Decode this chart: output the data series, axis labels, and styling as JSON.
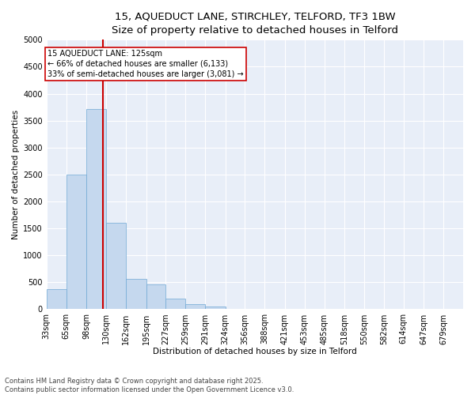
{
  "title_line1": "15, AQUEDUCT LANE, STIRCHLEY, TELFORD, TF3 1BW",
  "title_line2": "Size of property relative to detached houses in Telford",
  "xlabel": "Distribution of detached houses by size in Telford",
  "ylabel": "Number of detached properties",
  "bar_color": "#c5d8ee",
  "bar_edge_color": "#6fa8d4",
  "bg_color": "#e8eef8",
  "grid_color": "#ffffff",
  "vline_x": 125,
  "vline_color": "#cc0000",
  "annotation_text": "15 AQUEDUCT LANE: 125sqm\n← 66% of detached houses are smaller (6,133)\n33% of semi-detached houses are larger (3,081) →",
  "annotation_box_color": "#cc0000",
  "footer_text": "Contains HM Land Registry data © Crown copyright and database right 2025.\nContains public sector information licensed under the Open Government Licence v3.0.",
  "categories": [
    "33sqm",
    "65sqm",
    "98sqm",
    "130sqm",
    "162sqm",
    "195sqm",
    "227sqm",
    "259sqm",
    "291sqm",
    "324sqm",
    "356sqm",
    "388sqm",
    "421sqm",
    "453sqm",
    "485sqm",
    "518sqm",
    "550sqm",
    "582sqm",
    "614sqm",
    "647sqm",
    "679sqm"
  ],
  "bin_edges": [
    33,
    65,
    98,
    130,
    162,
    195,
    227,
    259,
    291,
    324,
    356,
    388,
    421,
    453,
    485,
    518,
    550,
    582,
    614,
    647,
    679,
    711
  ],
  "values": [
    370,
    2500,
    3720,
    1600,
    570,
    460,
    200,
    100,
    50,
    0,
    0,
    0,
    0,
    0,
    0,
    0,
    0,
    0,
    0,
    0,
    0
  ],
  "ylim": [
    0,
    5000
  ],
  "yticks": [
    0,
    500,
    1000,
    1500,
    2000,
    2500,
    3000,
    3500,
    4000,
    4500,
    5000
  ],
  "title_fontsize": 9.5,
  "subtitle_fontsize": 9,
  "axis_fontsize": 7.5,
  "tick_fontsize": 7,
  "footer_fontsize": 6
}
